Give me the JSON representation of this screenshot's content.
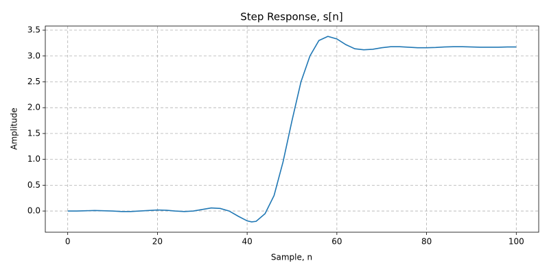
{
  "chart_data": {
    "type": "line",
    "title": "Step Response, s[n]",
    "x_label": "Sample, n",
    "y_label": "Amplitude",
    "x": [
      0,
      2,
      4,
      6,
      8,
      10,
      12,
      14,
      16,
      18,
      20,
      22,
      24,
      26,
      28,
      30,
      32,
      34,
      36,
      38,
      40,
      41,
      42,
      44,
      46,
      48,
      50,
      52,
      54,
      56,
      58,
      60,
      62,
      64,
      66,
      68,
      70,
      72,
      74,
      76,
      78,
      80,
      82,
      84,
      86,
      88,
      90,
      92,
      94,
      96,
      98,
      100
    ],
    "series": [
      {
        "name": "s[n]",
        "color": "#1f77b4",
        "values": [
          0,
          0,
          0.005,
          0.01,
          0.005,
          0,
          -0.01,
          -0.01,
          0,
          0.01,
          0.02,
          0.015,
          0,
          -0.01,
          0,
          0.03,
          0.06,
          0.05,
          0,
          -0.1,
          -0.19,
          -0.21,
          -0.2,
          -0.05,
          0.3,
          0.95,
          1.75,
          2.5,
          3.0,
          3.3,
          3.38,
          3.33,
          3.22,
          3.14,
          3.12,
          3.13,
          3.16,
          3.18,
          3.18,
          3.17,
          3.16,
          3.16,
          3.165,
          3.175,
          3.18,
          3.18,
          3.175,
          3.17,
          3.17,
          3.17,
          3.175,
          3.175
        ]
      }
    ],
    "xlim": [
      -5,
      105
    ],
    "ylim": [
      -0.41,
      3.58
    ],
    "xticks": [
      0,
      20,
      40,
      60,
      80,
      100
    ],
    "yticks": [
      {
        "value": 0,
        "label": "0.0"
      },
      {
        "value": 0.5,
        "label": "0.5"
      },
      {
        "value": 1,
        "label": "1.0"
      },
      {
        "value": 1.5,
        "label": "1.5"
      },
      {
        "value": 2,
        "label": "2.0"
      },
      {
        "value": 2.5,
        "label": "2.5"
      },
      {
        "value": 3,
        "label": "3.0"
      },
      {
        "value": 3.5,
        "label": "3.5"
      }
    ],
    "grid": true
  }
}
